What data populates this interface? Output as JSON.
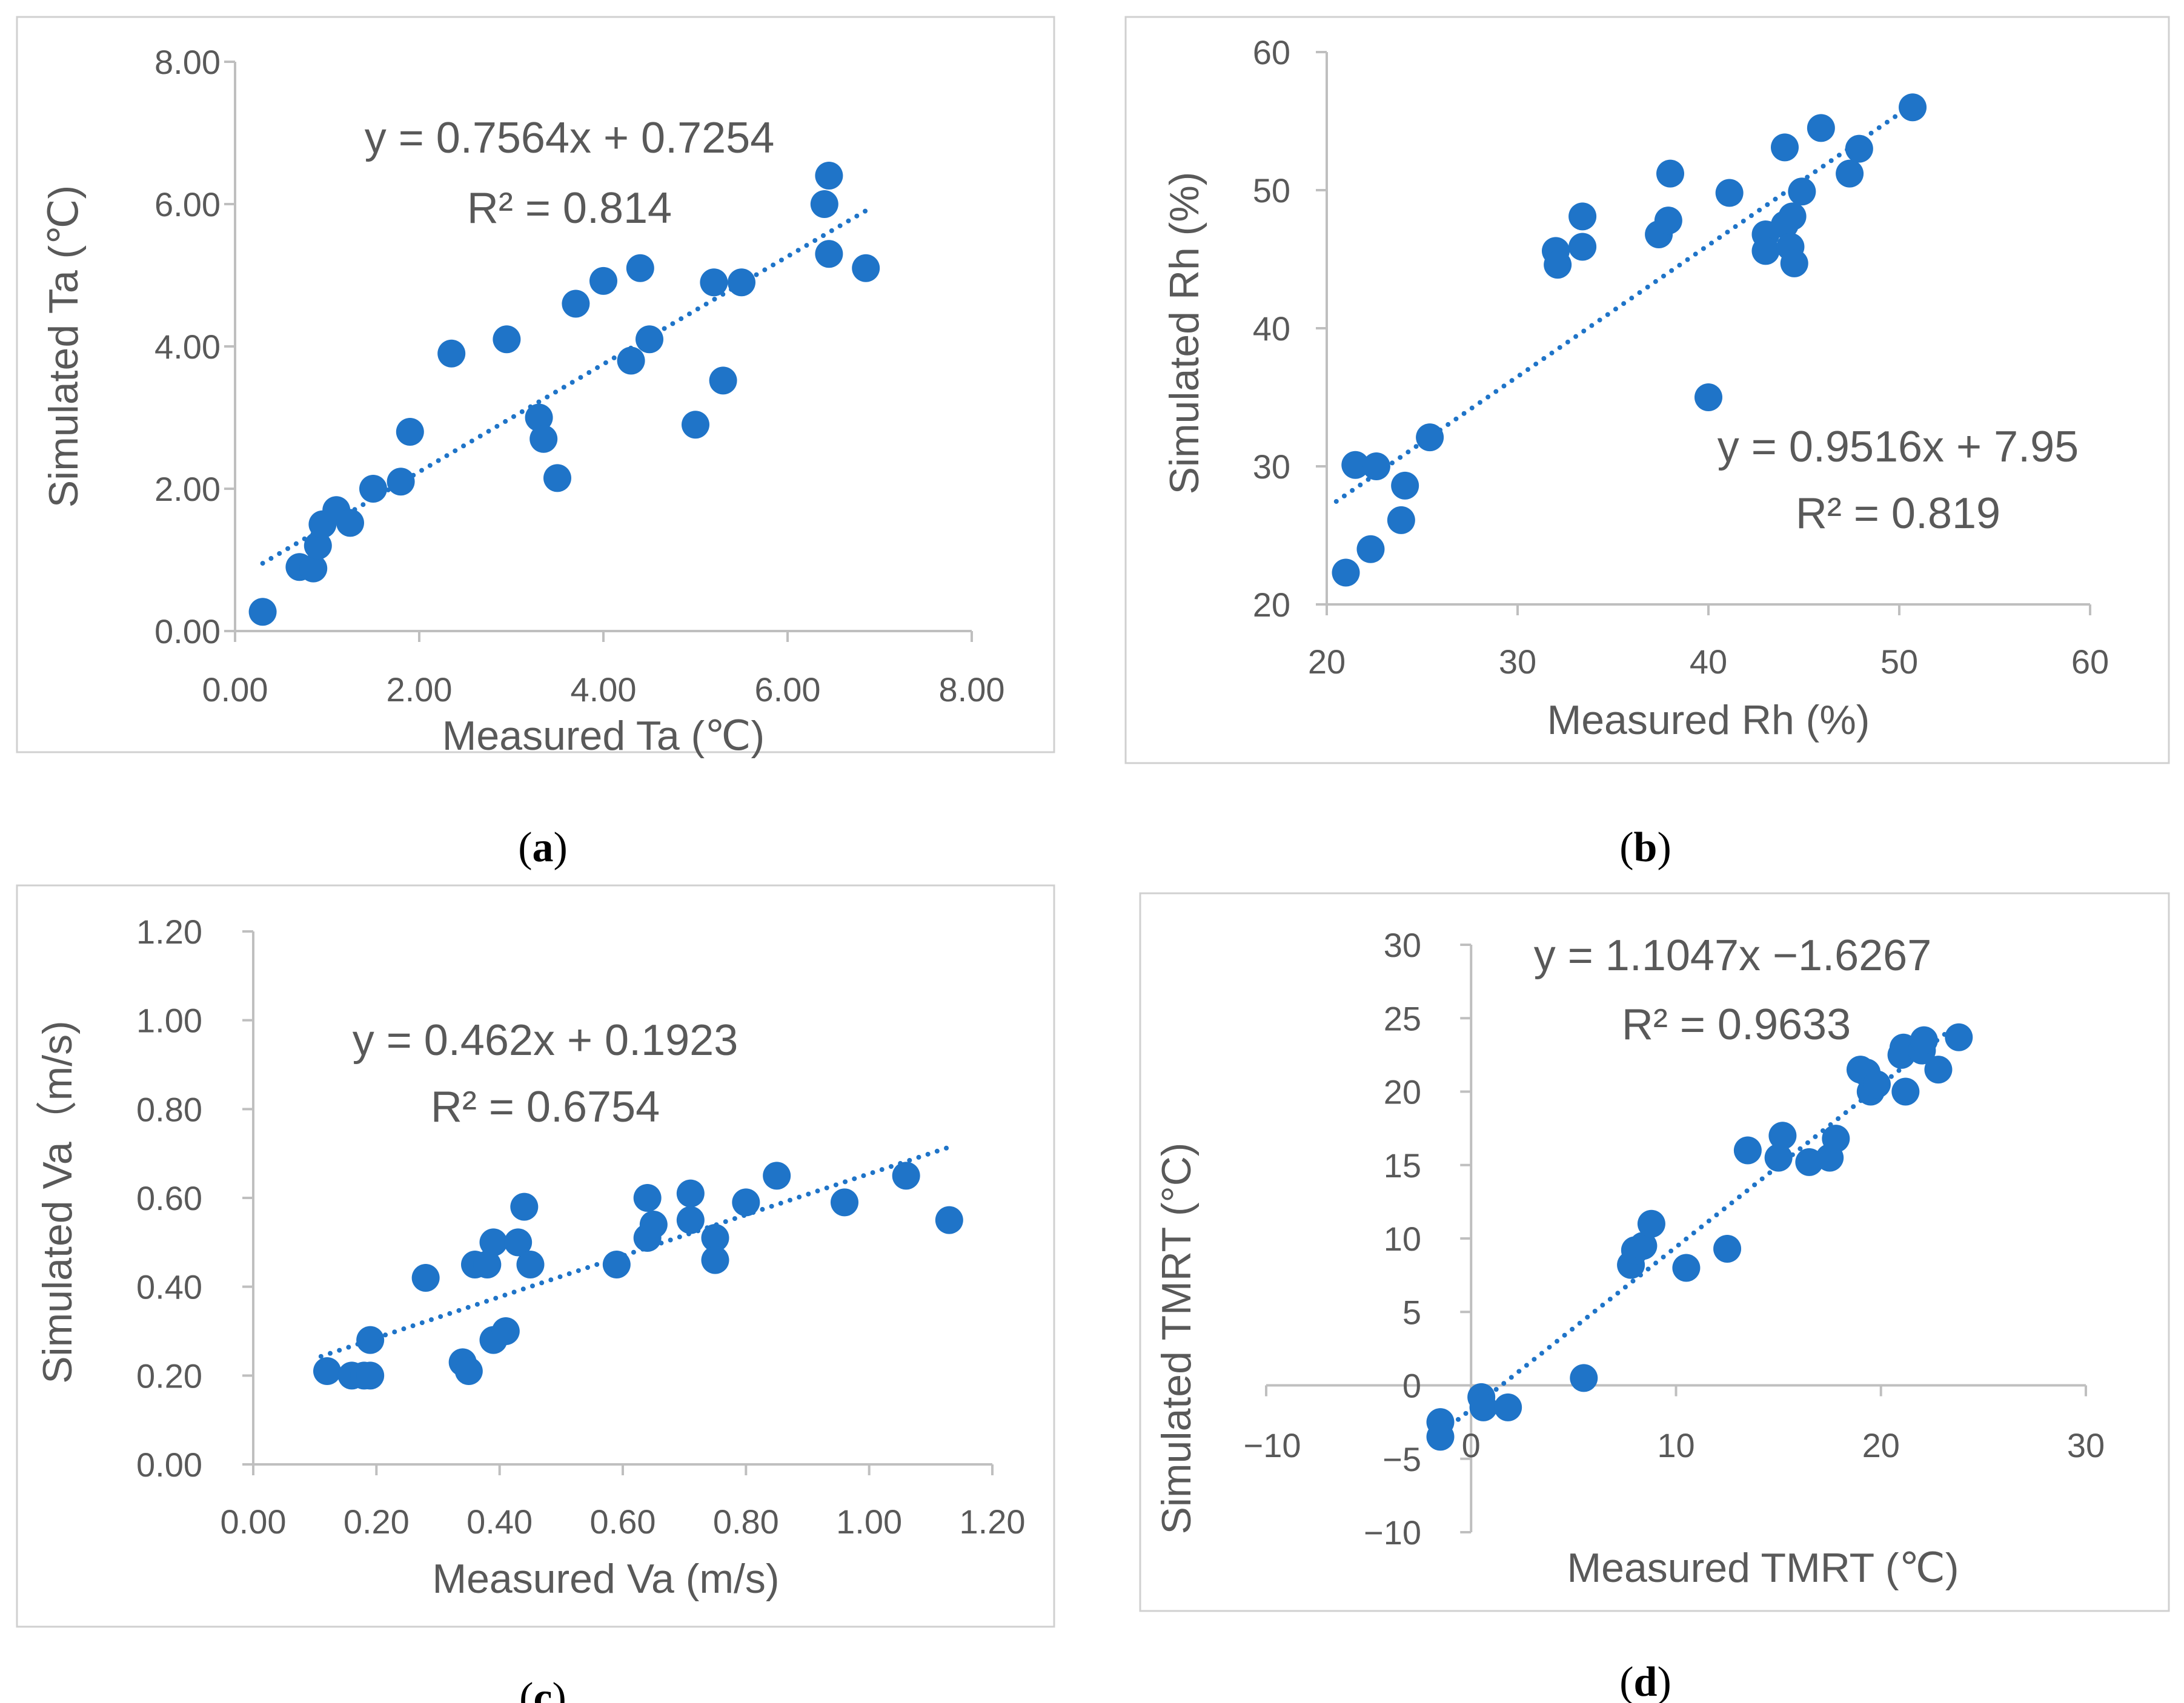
{
  "chart_data": [
    {
      "type": "scatter",
      "panel": "a",
      "caption": "a",
      "xlabel": "Measured Ta (℃)",
      "ylabel": "Simulated Ta (℃)",
      "xlim": [
        0,
        8
      ],
      "ylim": [
        0,
        8
      ],
      "xticks": [
        0,
        2,
        4,
        6,
        8
      ],
      "yticks": [
        0,
        2,
        4,
        6,
        8
      ],
      "xtick_labels": [
        "0.00",
        "2.00",
        "4.00",
        "6.00",
        "8.00"
      ],
      "ytick_labels": [
        "0.00",
        "2.00",
        "4.00",
        "6.00",
        "8.00"
      ],
      "equation": "y = 0.7564x + 0.7254",
      "r2": "R² = 0.814",
      "trend": {
        "slope": 0.7564,
        "intercept": 0.7254,
        "x_range": [
          0.3,
          6.9
        ]
      },
      "points": [
        [
          0.3,
          0.27
        ],
        [
          0.7,
          0.9
        ],
        [
          0.85,
          0.88
        ],
        [
          0.9,
          1.2
        ],
        [
          0.95,
          1.5
        ],
        [
          1.1,
          1.7
        ],
        [
          1.25,
          1.52
        ],
        [
          1.5,
          2.0
        ],
        [
          1.8,
          2.1
        ],
        [
          1.9,
          2.8
        ],
        [
          2.35,
          3.9
        ],
        [
          2.95,
          4.1
        ],
        [
          3.3,
          3.0
        ],
        [
          3.35,
          2.7
        ],
        [
          3.5,
          2.15
        ],
        [
          3.7,
          4.6
        ],
        [
          4.0,
          4.92
        ],
        [
          4.3,
          3.8
        ],
        [
          4.4,
          5.1
        ],
        [
          4.5,
          4.1
        ],
        [
          5.0,
          2.9
        ],
        [
          5.2,
          4.9
        ],
        [
          5.3,
          3.52
        ],
        [
          5.5,
          4.9
        ],
        [
          6.4,
          6.0
        ],
        [
          6.45,
          6.4
        ],
        [
          6.45,
          5.3
        ],
        [
          6.85,
          5.1
        ]
      ]
    },
    {
      "type": "scatter",
      "panel": "b",
      "caption": "b",
      "xlabel": "Measured Rh (%)",
      "ylabel": "Simulated Rh (%)",
      "xlim": [
        20,
        60
      ],
      "ylim": [
        20,
        60
      ],
      "xticks": [
        20,
        30,
        40,
        50,
        60
      ],
      "yticks": [
        20,
        30,
        40,
        50,
        60
      ],
      "xtick_labels": [
        "20",
        "30",
        "40",
        "50",
        "60"
      ],
      "ytick_labels": [
        "20",
        "30",
        "40",
        "50",
        "60"
      ],
      "equation": "y = 0.9516x + 7.95",
      "r2": "R² = 0.819",
      "trend": {
        "slope": 0.9516,
        "intercept": 7.95,
        "x_range": [
          20.5,
          51
        ]
      },
      "points": [
        [
          21.0,
          22.3
        ],
        [
          21.5,
          30.1
        ],
        [
          22.3,
          24.0
        ],
        [
          22.6,
          30.0
        ],
        [
          23.9,
          26.1
        ],
        [
          24.1,
          28.6
        ],
        [
          25.4,
          32.1
        ],
        [
          32.0,
          45.6
        ],
        [
          32.1,
          44.6
        ],
        [
          33.4,
          48.1
        ],
        [
          33.4,
          45.9
        ],
        [
          37.4,
          46.8
        ],
        [
          37.9,
          47.8
        ],
        [
          38.0,
          51.2
        ],
        [
          40.0,
          35.0
        ],
        [
          41.1,
          49.8
        ],
        [
          43.0,
          46.8
        ],
        [
          43.0,
          45.6
        ],
        [
          44.0,
          53.1
        ],
        [
          44.0,
          47.5
        ],
        [
          44.3,
          45.9
        ],
        [
          44.4,
          48.1
        ],
        [
          44.5,
          44.7
        ],
        [
          44.9,
          49.9
        ],
        [
          45.9,
          54.5
        ],
        [
          47.4,
          51.2
        ],
        [
          47.9,
          53.0
        ],
        [
          50.7,
          56.0
        ]
      ]
    },
    {
      "type": "scatter",
      "panel": "c",
      "caption": "c",
      "xlabel": "Measured Va (m/s)",
      "ylabel": "Simulated Va（m/s)",
      "xlim": [
        0,
        1.2
      ],
      "ylim": [
        0,
        1.2
      ],
      "xticks": [
        0,
        0.2,
        0.4,
        0.6,
        0.8,
        1.0,
        1.2
      ],
      "yticks": [
        0,
        0.2,
        0.4,
        0.6,
        0.8,
        1.0,
        1.2
      ],
      "xtick_labels": [
        "0.00",
        "0.20",
        "0.40",
        "0.60",
        "0.80",
        "1.00",
        "1.20"
      ],
      "ytick_labels": [
        "0.00",
        "0.20",
        "0.40",
        "0.60",
        "0.80",
        "1.00",
        "1.20"
      ],
      "equation": "y = 0.462x + 0.1923",
      "r2": "R² = 0.6754",
      "trend": {
        "slope": 0.462,
        "intercept": 0.1923,
        "x_range": [
          0.11,
          1.14
        ]
      },
      "points": [
        [
          0.12,
          0.21
        ],
        [
          0.16,
          0.2
        ],
        [
          0.18,
          0.2
        ],
        [
          0.19,
          0.28
        ],
        [
          0.19,
          0.2
        ],
        [
          0.28,
          0.42
        ],
        [
          0.34,
          0.23
        ],
        [
          0.35,
          0.21
        ],
        [
          0.36,
          0.45
        ],
        [
          0.38,
          0.45
        ],
        [
          0.39,
          0.5
        ],
        [
          0.39,
          0.28
        ],
        [
          0.41,
          0.3
        ],
        [
          0.43,
          0.5
        ],
        [
          0.44,
          0.58
        ],
        [
          0.45,
          0.45
        ],
        [
          0.59,
          0.45
        ],
        [
          0.64,
          0.6
        ],
        [
          0.64,
          0.51
        ],
        [
          0.65,
          0.54
        ],
        [
          0.71,
          0.61
        ],
        [
          0.71,
          0.55
        ],
        [
          0.75,
          0.51
        ],
        [
          0.75,
          0.46
        ],
        [
          0.8,
          0.59
        ],
        [
          0.85,
          0.65
        ],
        [
          0.96,
          0.59
        ],
        [
          1.06,
          0.65
        ],
        [
          1.13,
          0.55
        ]
      ]
    },
    {
      "type": "scatter",
      "panel": "d",
      "caption": "d",
      "xlabel": "Measured TMRT (℃)",
      "ylabel": "Simulated TMRT (°C)",
      "xlim": [
        -10,
        30
      ],
      "ylim": [
        -10,
        30
      ],
      "xticks": [
        -10,
        0,
        10,
        20,
        30
      ],
      "yticks": [
        -10,
        -5,
        0,
        5,
        10,
        15,
        20,
        25,
        30
      ],
      "xtick_labels": [
        "−10",
        "0",
        "10",
        "20",
        "30"
      ],
      "ytick_labels": [
        "−10",
        "−5",
        "0",
        "5",
        "10",
        "15",
        "20",
        "25",
        "30"
      ],
      "equation": "y = 1.1047x −1.6267",
      "r2": "R² = 0.9633",
      "trend": {
        "slope": 1.1047,
        "intercept": -1.6267,
        "x_range": [
          -1.0,
          23.5
        ]
      },
      "points": [
        [
          -1.5,
          -2.5
        ],
        [
          -1.5,
          -3.5
        ],
        [
          0.5,
          -0.8
        ],
        [
          0.6,
          -1.5
        ],
        [
          1.8,
          -1.5
        ],
        [
          5.5,
          0.5
        ],
        [
          7.8,
          8.2
        ],
        [
          8.0,
          9.2
        ],
        [
          8.4,
          9.5
        ],
        [
          8.8,
          11.0
        ],
        [
          10.5,
          8.0
        ],
        [
          12.5,
          9.3
        ],
        [
          13.5,
          16.0
        ],
        [
          15.0,
          15.5
        ],
        [
          15.2,
          17.0
        ],
        [
          16.5,
          15.2
        ],
        [
          17.5,
          15.5
        ],
        [
          17.8,
          16.8
        ],
        [
          19.0,
          21.5
        ],
        [
          19.3,
          21.3
        ],
        [
          19.5,
          20.0
        ],
        [
          19.8,
          20.5
        ],
        [
          21.0,
          22.5
        ],
        [
          21.1,
          23.0
        ],
        [
          21.2,
          20.0
        ],
        [
          22.0,
          22.8
        ],
        [
          22.1,
          23.5
        ],
        [
          22.8,
          21.5
        ],
        [
          23.8,
          23.7
        ]
      ]
    }
  ]
}
